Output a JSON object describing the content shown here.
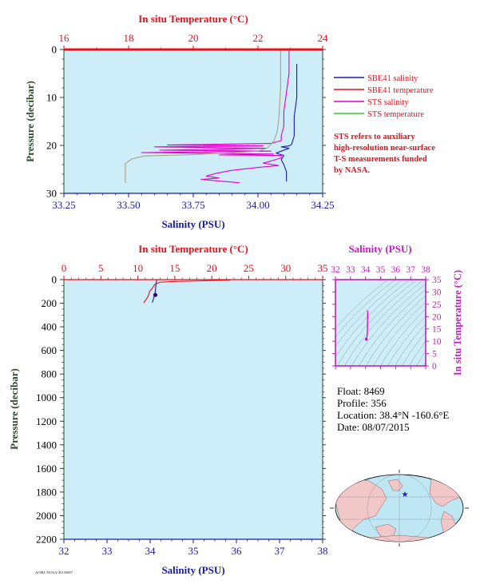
{
  "colors": {
    "plot_bg": "#cdeef8",
    "salinity_axis": "#1a1aa6",
    "temperature_axis": "#e8101c",
    "sts_salinity": "#e000c8",
    "sts_temperature": "#a9a080",
    "pressure_axis": "#2c4a2c",
    "ts_axis": "#c020c0",
    "legend_sbe_salinity": "#1a1aa6",
    "legend_sbe_temperature": "#e8101c",
    "legend_sts_salinity": "#e000c8",
    "legend_sts_temperature": "#34c834"
  },
  "legend": {
    "items": [
      {
        "label": "SBE41 salinity"
      },
      {
        "label": "SBE41 temperature"
      },
      {
        "label": "STS salinity"
      },
      {
        "label": "STS temperature"
      }
    ],
    "note": [
      "STS refers to auxiliary",
      "high-resolution near-surface",
      "T-S measurements funded",
      "by NASA."
    ]
  },
  "float_info": {
    "float": "Float:  8469",
    "profile": "Profile:  356",
    "location": "Location:  38.4°N  -160.6°E",
    "date": "Date:  08/07/2015"
  },
  "footer_code": "AOML/NOAA-20150807",
  "chart_data": [
    {
      "id": "near-surface",
      "type": "line",
      "top_axis_label": "In situ Temperature (°C)",
      "bottom_axis_label": "Salinity (PSU)",
      "ylabel": "Pressure (decibar)",
      "temperature_ticks": [
        "16",
        "18",
        "20",
        "22",
        "24"
      ],
      "salinity_ticks": [
        "33.25",
        "33.50",
        "33.75",
        "34.00",
        "34.25"
      ],
      "pressure_ticks": [
        "0",
        "10",
        "20",
        "30"
      ],
      "xlim_salinity": [
        33.25,
        34.25
      ],
      "xlim_temperature": [
        16,
        24
      ],
      "ylim_pressure": [
        0,
        30
      ],
      "grid": false,
      "series": [
        {
          "name": "SBE41 salinity",
          "axis": "salinity",
          "points": [
            [
              34.15,
              3
            ],
            [
              34.15,
              10
            ],
            [
              34.14,
              14
            ],
            [
              34.14,
              18
            ],
            [
              34.13,
              19.8
            ],
            [
              34.12,
              20.1
            ],
            [
              34.09,
              20.3
            ],
            [
              34.12,
              20.6
            ],
            [
              34.09,
              21.2
            ],
            [
              34.07,
              21.6
            ],
            [
              34.1,
              22.1
            ],
            [
              34.09,
              23
            ],
            [
              34.1,
              24
            ],
            [
              34.11,
              25.5
            ],
            [
              34.11,
              27.5
            ]
          ]
        },
        {
          "name": "SBE41 temperature",
          "axis": "temperature",
          "points": [
            [
              16.0,
              0
            ],
            [
              24.0,
              0
            ]
          ]
        },
        {
          "name": "STS salinity",
          "axis": "salinity",
          "points": [
            [
              34.12,
              0.3
            ],
            [
              34.12,
              5
            ],
            [
              34.11,
              9
            ],
            [
              34.1,
              13
            ],
            [
              34.1,
              16
            ],
            [
              34.09,
              18
            ],
            [
              34.09,
              19
            ],
            [
              34.05,
              19.6
            ],
            [
              33.65,
              19.9
            ],
            [
              34.02,
              20.1
            ],
            [
              33.6,
              20.3
            ],
            [
              34.03,
              20.6
            ],
            [
              33.62,
              21
            ],
            [
              34.05,
              21.2
            ],
            [
              33.55,
              21.5
            ],
            [
              34.06,
              21.8
            ],
            [
              33.85,
              22
            ],
            [
              34.09,
              22.1
            ],
            [
              34.09,
              22.6
            ],
            [
              34.06,
              23.1
            ],
            [
              34.02,
              23.7
            ],
            [
              34.08,
              24.2
            ],
            [
              34.0,
              24.6
            ],
            [
              33.9,
              25.2
            ],
            [
              33.84,
              25.8
            ],
            [
              33.8,
              26.4
            ],
            [
              33.85,
              26.8
            ],
            [
              33.78,
              27.1
            ],
            [
              33.93,
              27.8
            ]
          ]
        },
        {
          "name": "STS temperature",
          "axis": "temperature",
          "points": [
            [
              22.7,
              0.3
            ],
            [
              22.7,
              2
            ],
            [
              22.7,
              8
            ],
            [
              22.65,
              14
            ],
            [
              22.6,
              17
            ],
            [
              22.5,
              19
            ],
            [
              22.3,
              20.5
            ],
            [
              22.0,
              21.2
            ],
            [
              21.0,
              21.6
            ],
            [
              20.0,
              21.9
            ],
            [
              18.5,
              22.2
            ],
            [
              18.1,
              22.8
            ],
            [
              17.9,
              23.8
            ],
            [
              17.9,
              25.5
            ],
            [
              17.9,
              27.8
            ]
          ]
        }
      ]
    },
    {
      "id": "full-depth",
      "type": "line",
      "top_axis_label": "In situ Temperature (°C)",
      "bottom_axis_label": "Salinity (PSU)",
      "ylabel": "Pressure (decibar)",
      "temperature_ticks": [
        "0",
        "5",
        "10",
        "15",
        "20",
        "25",
        "30",
        "35"
      ],
      "salinity_ticks": [
        "32",
        "33",
        "34",
        "35",
        "36",
        "37",
        "38"
      ],
      "pressure_ticks": [
        "0",
        "200",
        "400",
        "600",
        "800",
        "1000",
        "1200",
        "1400",
        "1600",
        "1800",
        "2000",
        "2200"
      ],
      "xlim_salinity": [
        32,
        38
      ],
      "xlim_temperature": [
        0,
        35
      ],
      "ylim_pressure": [
        0,
        2200
      ],
      "grid": false,
      "series": [
        {
          "name": "SBE41 salinity",
          "axis": "salinity",
          "points": [
            [
              34.15,
              4
            ],
            [
              34.14,
              30
            ],
            [
              34.13,
              60
            ],
            [
              34.12,
              100
            ],
            [
              34.1,
              130
            ],
            [
              34.08,
              160
            ],
            [
              34.05,
              195
            ]
          ]
        },
        {
          "name": "SBE41 temperature",
          "axis": "temperature",
          "points": [
            [
              22.5,
              4
            ],
            [
              19,
              10
            ],
            [
              15,
              16
            ],
            [
              13,
              22
            ],
            [
              12.3,
              40
            ],
            [
              12,
              70
            ],
            [
              11.6,
              100
            ],
            [
              11.4,
              140
            ],
            [
              11.1,
              170
            ],
            [
              10.8,
              195
            ]
          ]
        }
      ],
      "marker": {
        "salinity": 34.12,
        "pressure": 130
      }
    },
    {
      "id": "ts-diagram",
      "type": "line",
      "top_axis_label": "Salinity (PSU)",
      "right_axis_label": "In situ Temperature (°C)",
      "salinity_ticks": [
        "32",
        "33",
        "34",
        "35",
        "36",
        "37",
        "38"
      ],
      "temperature_ticks": [
        "0",
        "5",
        "10",
        "15",
        "20",
        "25",
        "30",
        "35"
      ],
      "xlim_salinity": [
        32,
        38
      ],
      "ylim_temperature": [
        0,
        35
      ],
      "series": [
        {
          "name": "T-S profile",
          "points": [
            [
              34.15,
              22.5
            ],
            [
              34.14,
              20
            ],
            [
              34.13,
              16
            ],
            [
              34.12,
              13
            ],
            [
              34.1,
              12
            ],
            [
              34.05,
              10.8
            ]
          ]
        }
      ]
    }
  ]
}
